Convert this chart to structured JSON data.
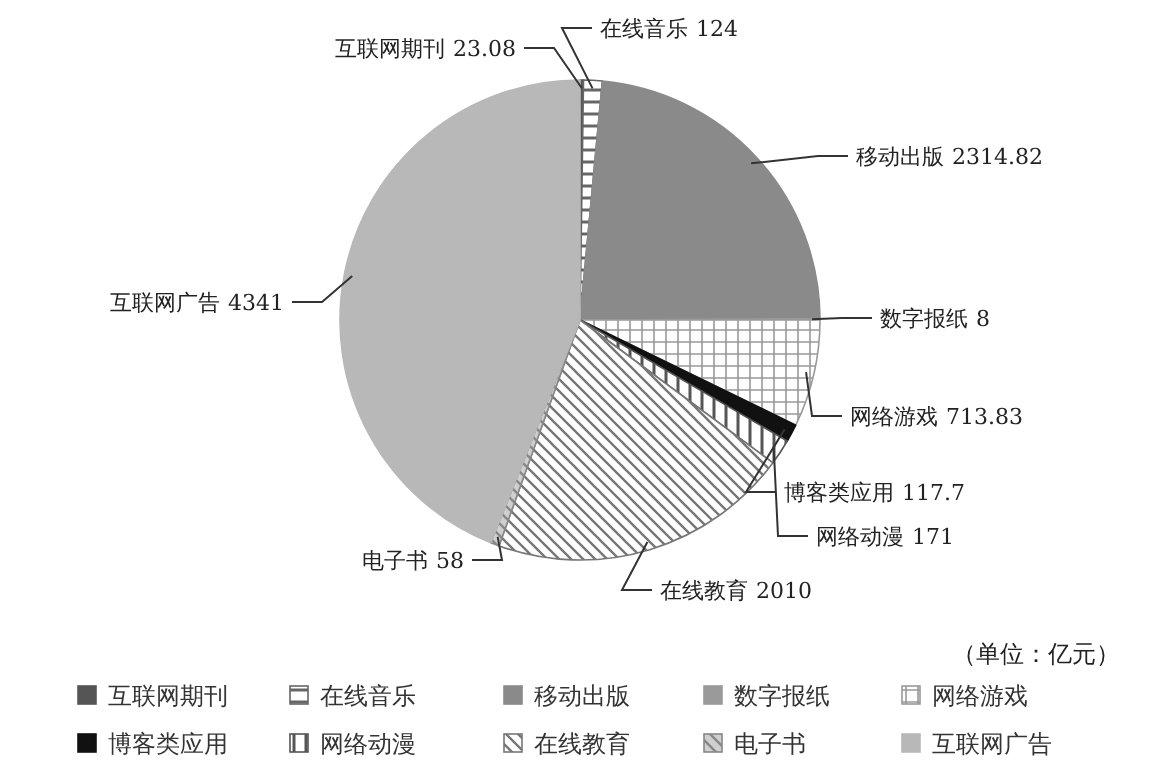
{
  "chart_data": {
    "type": "pie",
    "categories": [
      "互联网期刊",
      "在线音乐",
      "移动出版",
      "数字报纸",
      "网络游戏",
      "博客类应用",
      "网络动漫",
      "在线教育",
      "电子书",
      "互联网广告"
    ],
    "values": [
      23.08,
      124,
      2314.82,
      8,
      713.83,
      117.7,
      171,
      2010,
      58,
      4341
    ],
    "colors": [
      "#555555",
      "#666666",
      "#8a8a8a",
      "#9a9a9a",
      "#999999",
      "#111111",
      "#555555",
      "#777777",
      "#888888",
      "#b8b8b8"
    ],
    "data_labels": true,
    "legend": "bottom",
    "annotations": [
      "（单位：亿元）"
    ]
  }
}
